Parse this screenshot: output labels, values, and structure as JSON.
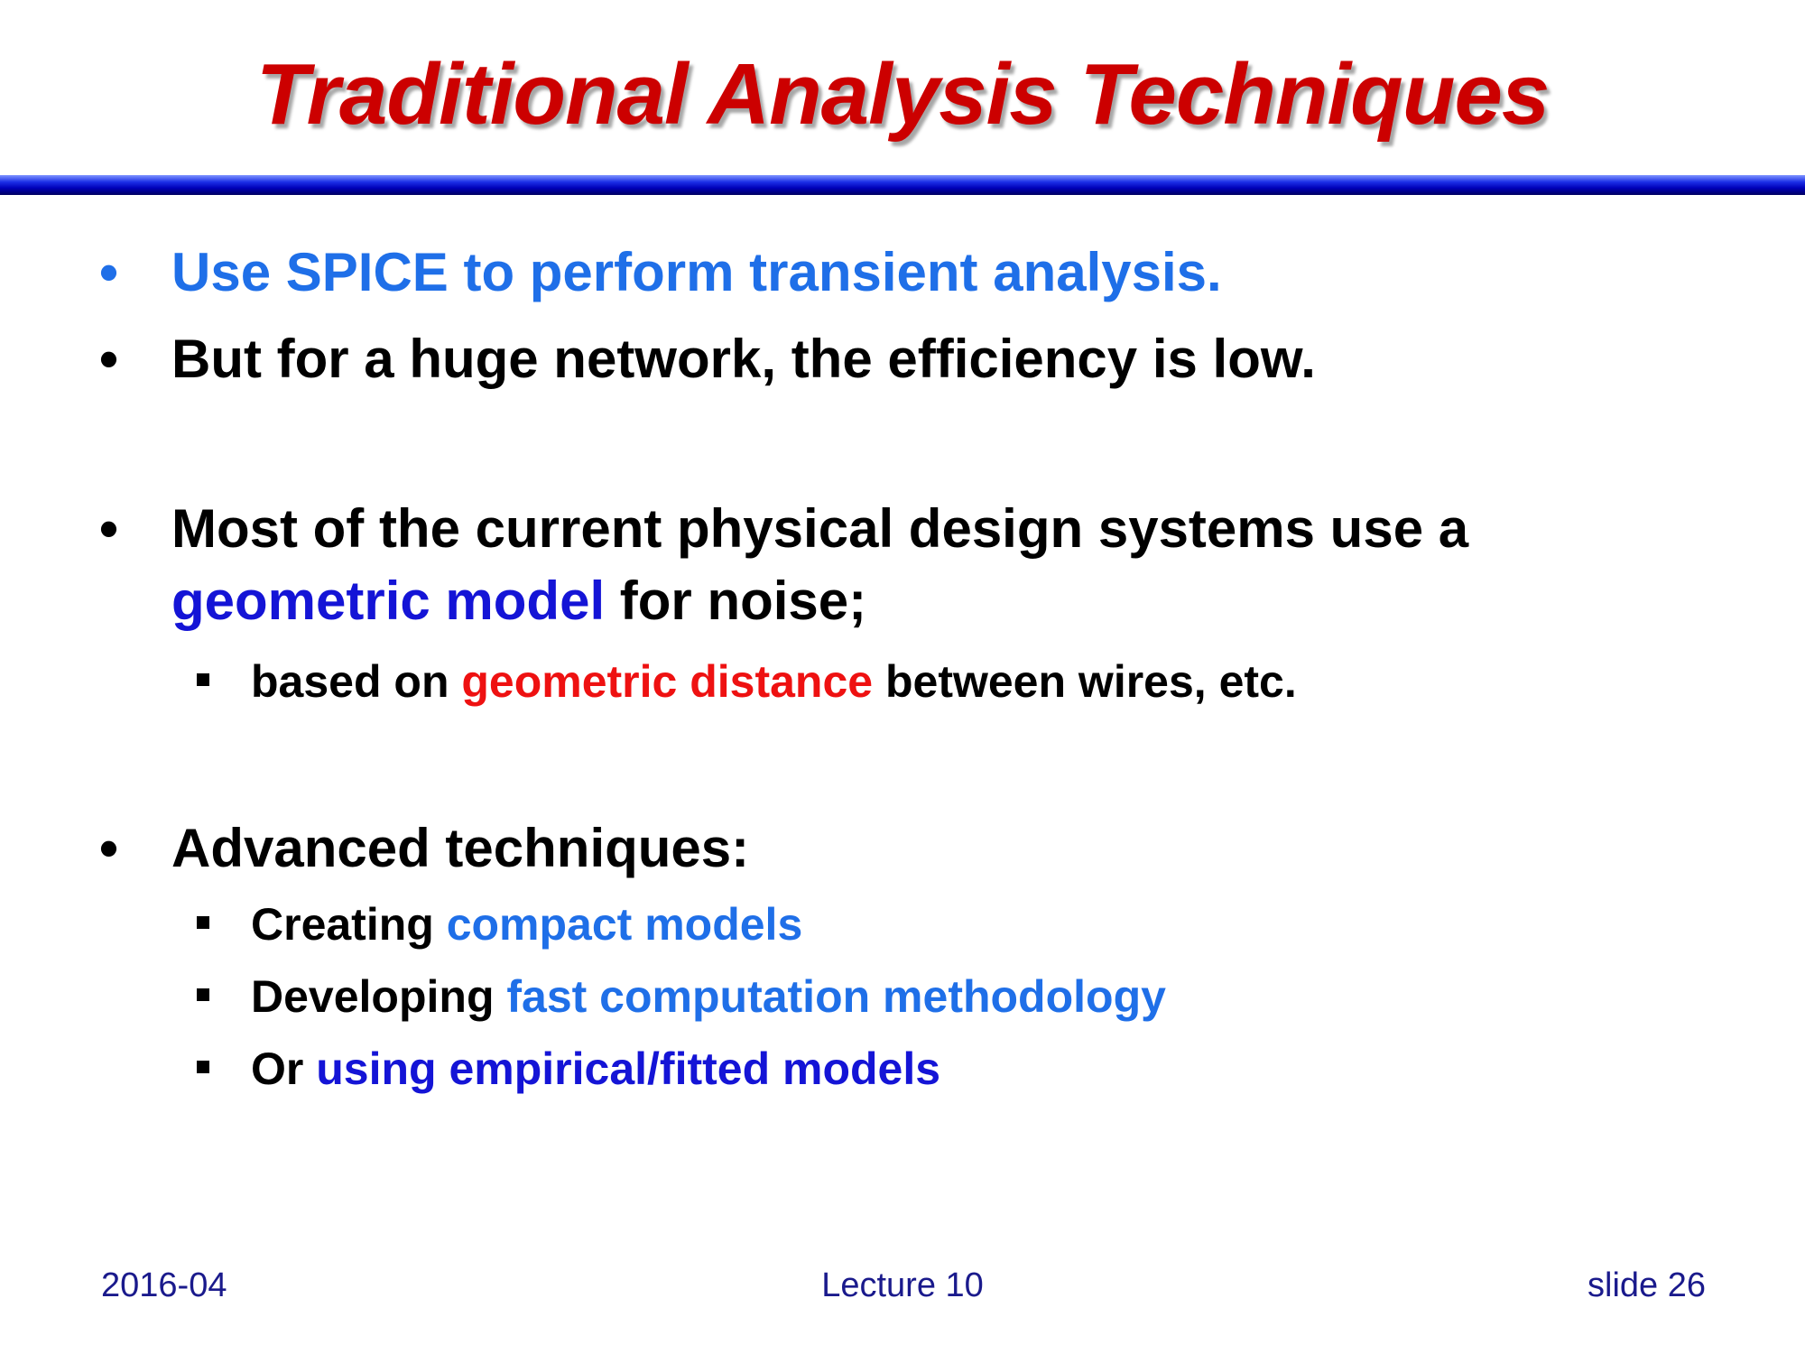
{
  "title": "Traditional Analysis Techniques",
  "bullets": {
    "b1": "Use SPICE to perform transient analysis.",
    "b2": "But for a huge network, the efficiency is low.",
    "b3_line1": "Most of the current physical design systems use a",
    "b3_line2_highlight": "geometric model",
    "b3_line2_rest": " for noise;",
    "b3_sub_pre": "based on ",
    "b3_sub_highlight": "geometric distance",
    "b3_sub_post": " between wires, etc.",
    "b4": "Advanced techniques:",
    "b4_sub1_pre": "Creating ",
    "b4_sub1_highlight": "compact models",
    "b4_sub2_pre": "Developing ",
    "b4_sub2_highlight": "fast computation methodology",
    "b4_sub3_pre": "Or ",
    "b4_sub3_highlight": "using empirical/fitted models"
  },
  "footer": {
    "date": "2016-04",
    "lecture": "Lecture 10",
    "slide": "slide 26"
  },
  "colors": {
    "title": "#cc0000",
    "accent_lightblue": "#1f6fe8",
    "accent_blue": "#1414d6",
    "accent_red": "#ee1111",
    "rule": "#0000b8"
  }
}
